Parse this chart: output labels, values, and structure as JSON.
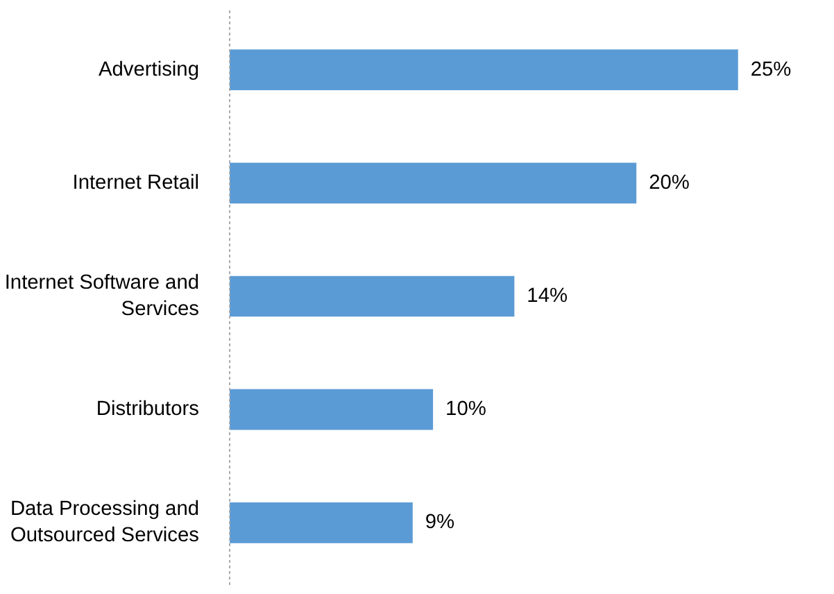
{
  "chart_data": {
    "type": "bar",
    "orientation": "horizontal",
    "categories": [
      "Advertising",
      "Internet Retail",
      "Internet Software and Services",
      "Distributors",
      "Data Processing and Outsourced Services"
    ],
    "values": [
      25,
      20,
      14,
      10,
      9
    ],
    "color": "#5b9bd5",
    "data_labels": true,
    "value_labels": [
      "25%",
      "20%",
      "14%",
      "10%",
      "9%"
    ],
    "grid": false
  }
}
